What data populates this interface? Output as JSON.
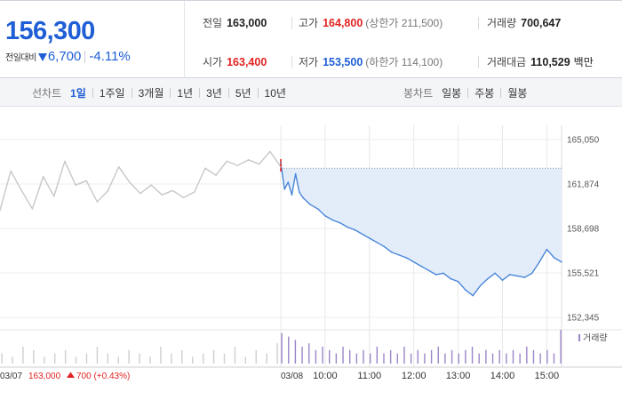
{
  "summary": {
    "price": "156,300",
    "change_label": "전일대비",
    "change_value": "6,700",
    "change_rate": "-4.11%",
    "prev_close": {
      "label": "전일",
      "value": "163,000"
    },
    "high": {
      "label": "고가",
      "value": "164,800",
      "note": "(상한가 211,500)"
    },
    "volume": {
      "label": "거래량",
      "value": "700,647"
    },
    "open": {
      "label": "시가",
      "value": "163,400"
    },
    "low": {
      "label": "저가",
      "value": "153,500",
      "note": "(하한가 114,100)"
    },
    "trade_value": {
      "label": "거래대금",
      "value": "110,529",
      "unit": "백만"
    }
  },
  "toolbar": {
    "line_chart_label": "선차트",
    "line_periods": [
      "1일",
      "1주일",
      "3개월",
      "1년",
      "3년",
      "5년",
      "10년"
    ],
    "active_period": "1일",
    "candle_chart_label": "봉차트",
    "candle_periods": [
      "일봉",
      "주봉",
      "월봉"
    ]
  },
  "colors": {
    "up": "#e22222",
    "down": "#1f5ed6",
    "price_line_today": "#4a86d9",
    "price_line_prev": "#c8c8c8",
    "fill_today": "#e3edfa",
    "volume_today": "#9b86c9",
    "volume_prev": "#cfcfcf"
  },
  "chart_data": {
    "type": "line",
    "y_ticks": [
      "165,050",
      "161,874",
      "158,698",
      "155,521",
      "152,345"
    ],
    "ylim": [
      152345,
      165050
    ],
    "prev_close": 163000,
    "x_ticks": [
      "10:00",
      "11:00",
      "12:00",
      "13:00",
      "14:00",
      "15:00"
    ],
    "prev_day_label": "03/07",
    "today_label": "03/08",
    "prev_close_text": "163,000",
    "prev_change_text": "700 (+0.43%)",
    "volume_legend": "거래량",
    "series": [
      {
        "name": "03/07",
        "x": [
          "09:00",
          "09:15",
          "09:30",
          "09:45",
          "10:00",
          "10:15",
          "10:30",
          "10:45",
          "11:00",
          "11:15",
          "11:30",
          "11:45",
          "12:00",
          "12:15",
          "12:30",
          "12:45",
          "13:00",
          "13:15",
          "13:30",
          "13:45",
          "14:00",
          "14:15",
          "14:30",
          "14:45",
          "15:00",
          "15:15",
          "15:30"
        ],
        "values": [
          160000,
          162800,
          161400,
          160100,
          162400,
          161000,
          163500,
          161800,
          162100,
          160600,
          161400,
          163100,
          162000,
          161200,
          161800,
          161100,
          161400,
          160900,
          161300,
          163000,
          162500,
          163500,
          163200,
          163600,
          163300,
          164200,
          163100
        ]
      },
      {
        "name": "03/08",
        "x": [
          "09:00",
          "09:05",
          "09:10",
          "09:15",
          "09:20",
          "09:25",
          "09:30",
          "09:40",
          "09:50",
          "10:00",
          "10:10",
          "10:20",
          "10:30",
          "10:40",
          "10:50",
          "11:00",
          "11:10",
          "11:20",
          "11:30",
          "11:40",
          "11:50",
          "12:00",
          "12:10",
          "12:20",
          "12:30",
          "12:40",
          "12:50",
          "13:00",
          "13:10",
          "13:20",
          "13:30",
          "13:40",
          "13:50",
          "14:00",
          "14:10",
          "14:20",
          "14:30",
          "14:40",
          "14:50",
          "15:00",
          "15:10",
          "15:20"
        ],
        "values": [
          163400,
          161500,
          162000,
          161100,
          162600,
          161300,
          160900,
          160400,
          160100,
          159600,
          159300,
          159100,
          158800,
          158600,
          158300,
          158000,
          157700,
          157400,
          157000,
          156800,
          156600,
          156300,
          156000,
          155700,
          155400,
          155500,
          155100,
          154900,
          154300,
          153900,
          154600,
          155100,
          155500,
          155000,
          155400,
          155300,
          155200,
          155500,
          156300,
          157200,
          156600,
          156300
        ]
      }
    ],
    "volume": {
      "03/07": [
        3,
        2,
        5,
        4,
        2,
        3,
        4,
        2,
        3,
        5,
        3,
        2,
        4,
        3,
        2,
        5,
        3,
        4,
        2,
        3,
        4,
        3,
        5,
        2,
        4,
        3,
        6
      ],
      "03/08": [
        9,
        8,
        7,
        5,
        6,
        4,
        5,
        4,
        3,
        5,
        4,
        3,
        4,
        3,
        5,
        3,
        4,
        3,
        5,
        3,
        4,
        3,
        4,
        5,
        3,
        4,
        3,
        4,
        5,
        3,
        4,
        3,
        4,
        3,
        4,
        3,
        5,
        4,
        3,
        4,
        3,
        10
      ]
    }
  }
}
